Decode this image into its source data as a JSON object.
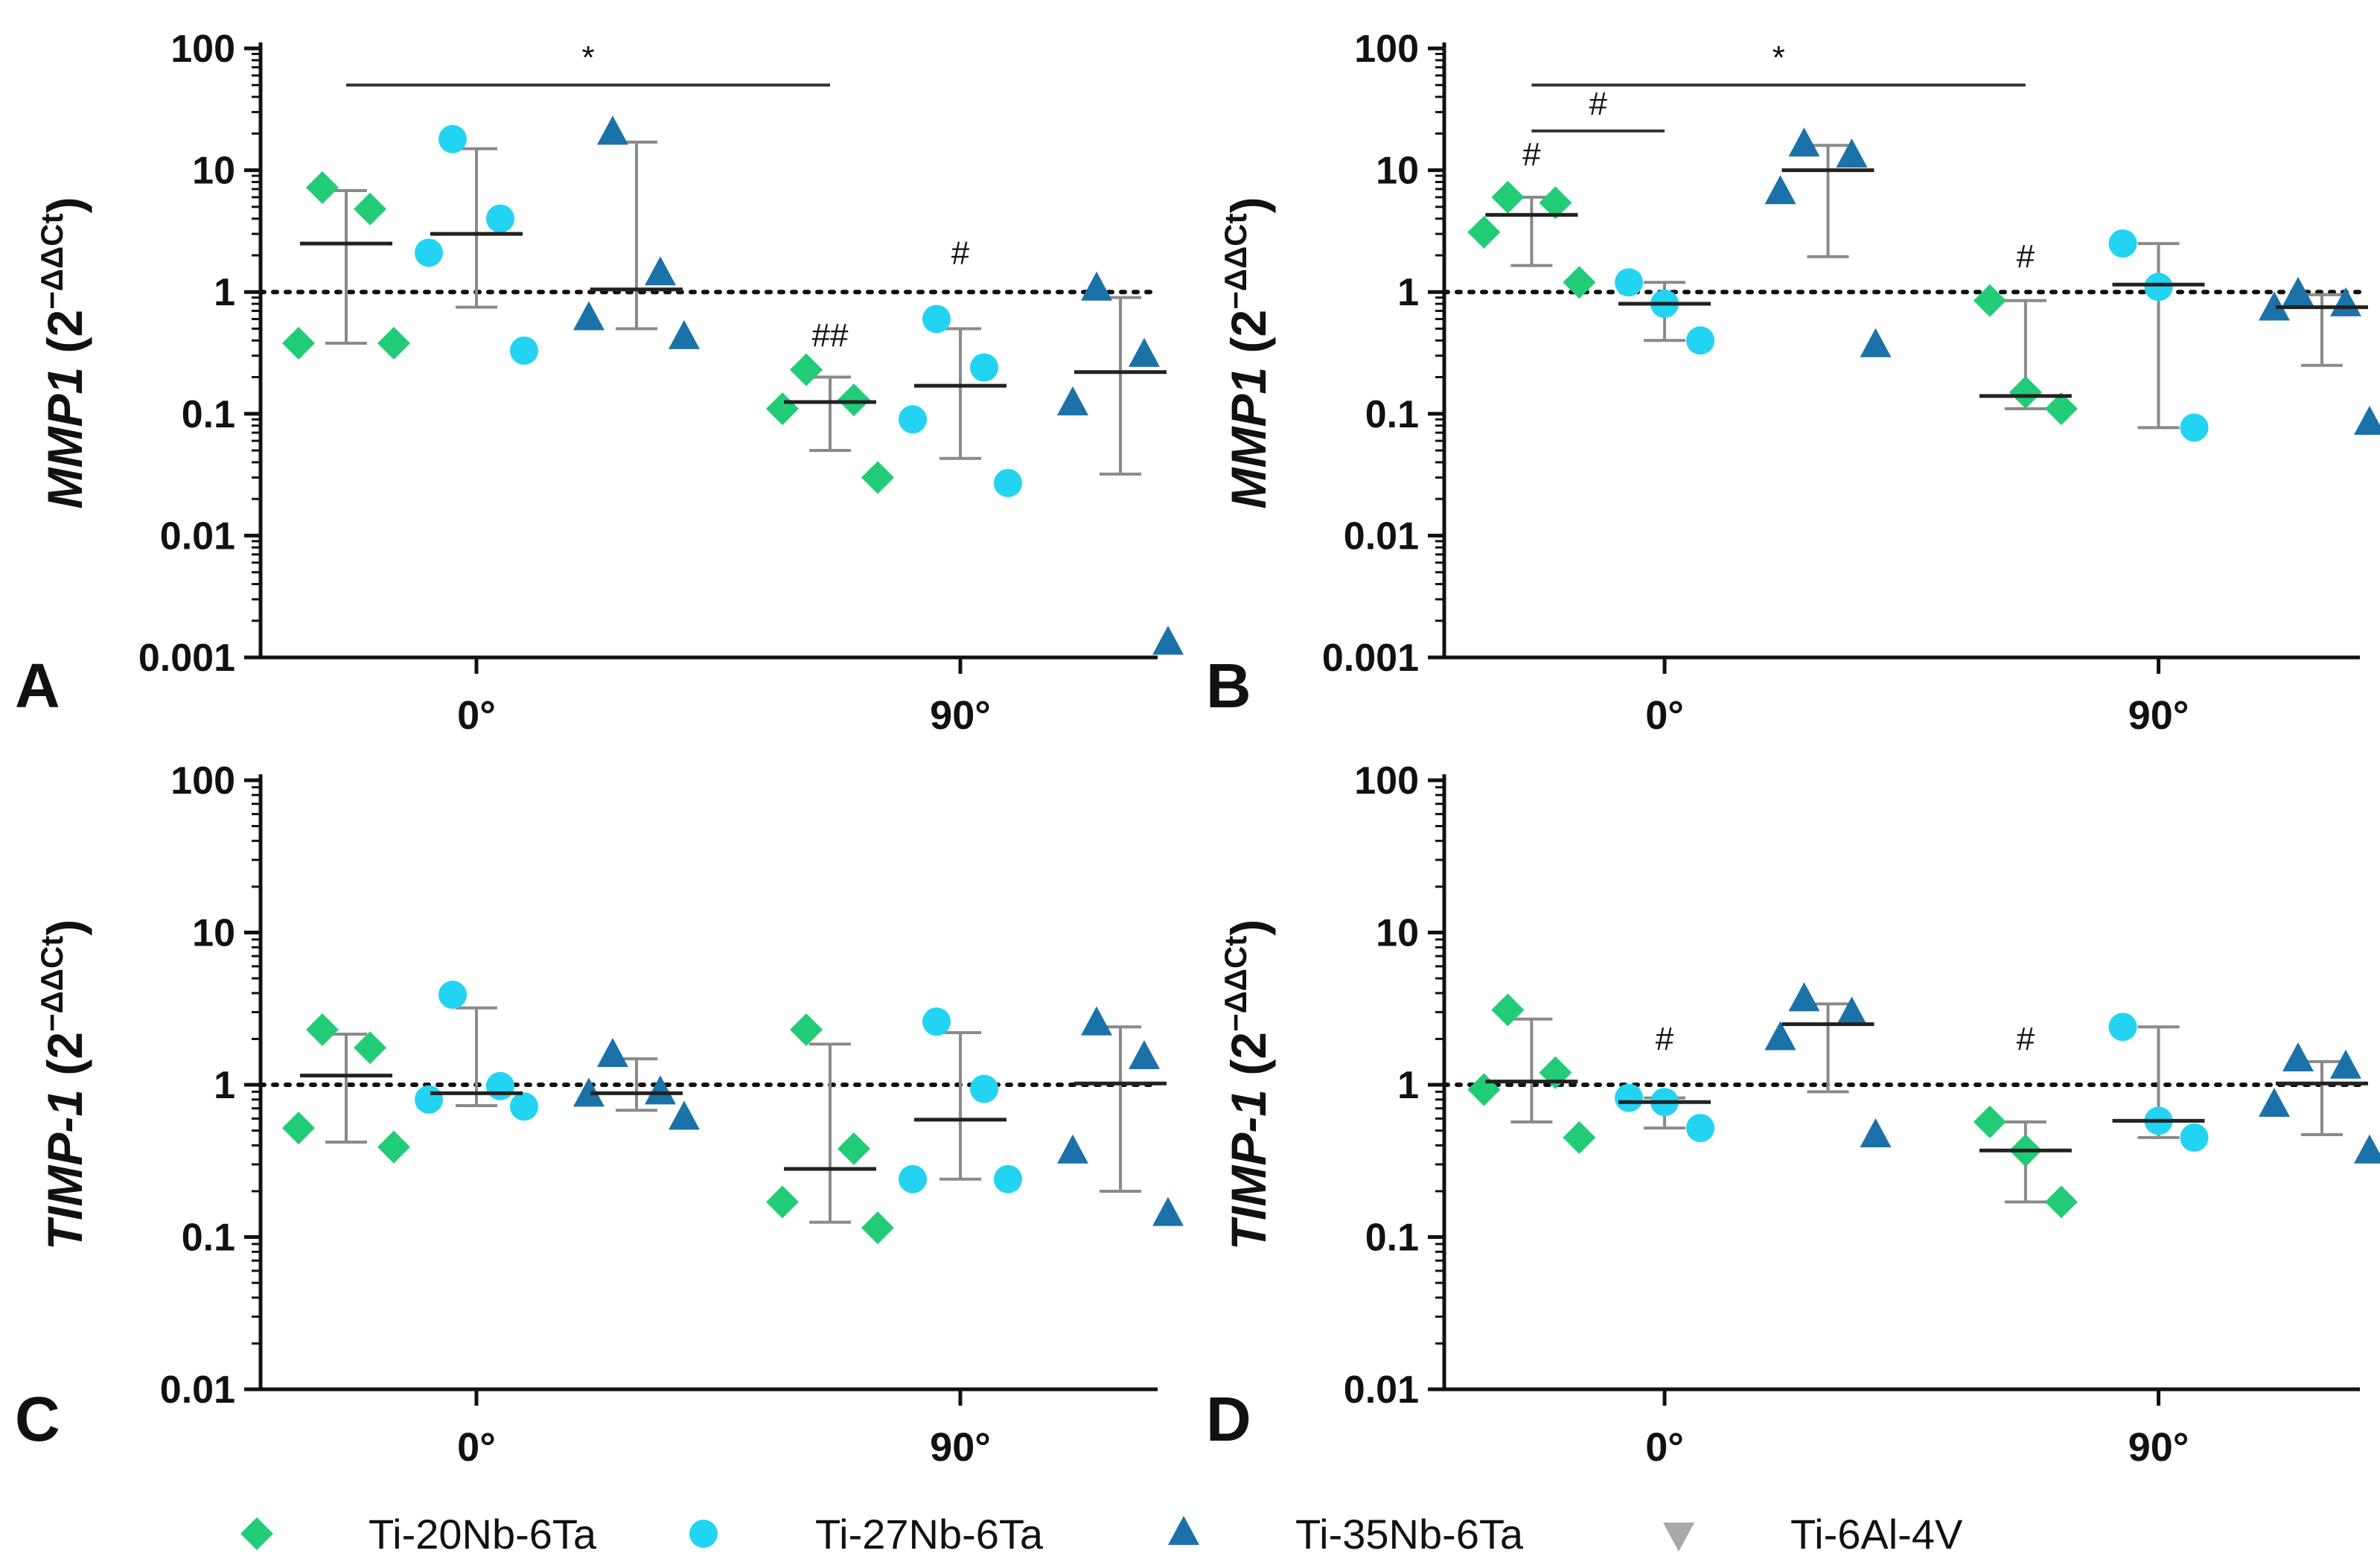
{
  "colors": {
    "Ti-20Nb-6Ta": "#22cc77",
    "Ti-27Nb-6Ta": "#22d4f2",
    "Ti-35Nb-6Ta": "#1a72a8",
    "Ti-6Al-4V": "#a8a8ad",
    "axis": "#111111",
    "errorbar": "#8a8a8a"
  },
  "legend": [
    {
      "label": "Ti-20Nb-6Ta",
      "marker": "diamond-icon"
    },
    {
      "label": "Ti-27Nb-6Ta",
      "marker": "circle-icon"
    },
    {
      "label": "Ti-35Nb-6Ta",
      "marker": "triangle-up-icon"
    },
    {
      "label": "Ti-6Al-4V",
      "marker": "triangle-down-icon"
    }
  ],
  "chart_data": [
    {
      "panel": "A",
      "type": "scatter",
      "ylabel_gene": "MMP1",
      "ylabel_unit": "(2",
      "ylabel_sup": "−ΔΔCt",
      "ylabel_close": ")",
      "yscale": "log",
      "ylim": [
        0.001,
        100
      ],
      "yticks": [
        "0.001",
        "0.01",
        "0.1",
        "1",
        "10",
        "100"
      ],
      "categories": [
        "0°",
        "90°"
      ],
      "reference_line": 1,
      "series": [
        {
          "name": "Ti-20Nb-6Ta",
          "groups": [
            {
              "category": "0°",
              "points": [
                7.2,
                4.8,
                0.38,
                0.38
              ],
              "median": 2.5,
              "err": [
                0.38,
                6.8
              ]
            },
            {
              "category": "90°",
              "points": [
                0.23,
                0.13,
                0.11,
                0.03
              ],
              "median": 0.125,
              "err": [
                0.05,
                0.2
              ]
            }
          ]
        },
        {
          "name": "Ti-27Nb-6Ta",
          "groups": [
            {
              "category": "0°",
              "points": [
                18,
                4,
                2.1,
                0.33
              ],
              "median": 3.0,
              "err": [
                0.75,
                15
              ]
            },
            {
              "category": "90°",
              "points": [
                0.6,
                0.24,
                0.09,
                0.027
              ],
              "median": 0.17,
              "err": [
                0.043,
                0.5
              ]
            }
          ]
        },
        {
          "name": "Ti-35Nb-6Ta",
          "groups": [
            {
              "category": "0°",
              "points": [
                20,
                1.4,
                0.6,
                0.42
              ],
              "median": 1.05,
              "err": [
                0.5,
                17
              ]
            },
            {
              "category": "90°",
              "points": [
                1.05,
                0.3,
                0.12,
                0.0013
              ],
              "median": 0.22,
              "err": [
                0.032,
                0.9
              ]
            }
          ]
        }
      ],
      "annotations": [
        {
          "type": "bracket",
          "text": "*",
          "from": [
            0,
            "Ti-20Nb-6Ta"
          ],
          "to": [
            1,
            "Ti-20Nb-6Ta"
          ],
          "y": 50
        },
        {
          "type": "label",
          "text": "##",
          "category": "90°",
          "series": "Ti-20Nb-6Ta",
          "y": 0.36
        },
        {
          "type": "label",
          "text": "#",
          "category": "90°",
          "series": "Ti-27Nb-6Ta",
          "y": 1.7
        }
      ]
    },
    {
      "panel": "B",
      "type": "scatter",
      "ylabel_gene": "MMP1",
      "ylabel_unit": "(2",
      "ylabel_sup": "−ΔΔCt",
      "ylabel_close": ")",
      "yscale": "log",
      "ylim": [
        0.001,
        100
      ],
      "yticks": [
        "0.001",
        "0.01",
        "0.1",
        "1",
        "10",
        "100"
      ],
      "categories": [
        "0°",
        "90°"
      ],
      "reference_line": 1,
      "series": [
        {
          "name": "Ti-20Nb-6Ta",
          "groups": [
            {
              "category": "0°",
              "points": [
                6,
                5.4,
                3.1,
                1.2
              ],
              "median": 4.3,
              "err": [
                1.65,
                6
              ]
            },
            {
              "category": "90°",
              "points": [
                0.85,
                0.15,
                0.11
              ],
              "median": 0.14,
              "err": [
                0.11,
                0.85
              ]
            }
          ]
        },
        {
          "name": "Ti-27Nb-6Ta",
          "groups": [
            {
              "category": "0°",
              "points": [
                1.2,
                0.8,
                0.4
              ],
              "median": 0.8,
              "err": [
                0.4,
                1.2
              ]
            },
            {
              "category": "90°",
              "points": [
                2.5,
                1.1,
                0.077
              ],
              "median": 1.15,
              "err": [
                0.077,
                2.5
              ]
            }
          ]
        },
        {
          "name": "Ti-35Nb-6Ta",
          "groups": [
            {
              "category": "0°",
              "points": [
                16,
                13,
                6.5,
                0.36
              ],
              "median": 10,
              "err": [
                1.95,
                16
              ]
            },
            {
              "category": "90°",
              "points": [
                0.95,
                0.78,
                0.72,
                0.083
              ],
              "median": 0.75,
              "err": [
                0.25,
                0.95
              ]
            }
          ]
        }
      ],
      "annotations": [
        {
          "type": "bracket",
          "text": "*",
          "from": [
            0,
            "Ti-20Nb-6Ta"
          ],
          "to": [
            1,
            "Ti-20Nb-6Ta"
          ],
          "y": 50
        },
        {
          "type": "bracket",
          "text": "#",
          "from": [
            0,
            "Ti-20Nb-6Ta"
          ],
          "to": [
            0,
            "Ti-27Nb-6Ta"
          ],
          "y": 21
        },
        {
          "type": "label",
          "text": "#",
          "category": "0°",
          "series": "Ti-20Nb-6Ta",
          "y": 11
        },
        {
          "type": "label",
          "text": "#",
          "category": "90°",
          "series": "Ti-20Nb-6Ta",
          "y": 1.6
        }
      ]
    },
    {
      "panel": "C",
      "type": "scatter",
      "ylabel_gene": "TIMP-1",
      "ylabel_unit": "(2",
      "ylabel_sup": "−ΔΔCt",
      "ylabel_close": ")",
      "yscale": "log",
      "ylim": [
        0.01,
        100
      ],
      "yticks": [
        "0.01",
        "0.1",
        "1",
        "10",
        "100"
      ],
      "categories": [
        "0°",
        "90°"
      ],
      "reference_line": 1,
      "series": [
        {
          "name": "Ti-20Nb-6Ta",
          "groups": [
            {
              "category": "0°",
              "points": [
                2.3,
                1.75,
                0.52,
                0.39
              ],
              "median": 1.15,
              "err": [
                0.42,
                2.15
              ]
            },
            {
              "category": "90°",
              "points": [
                2.3,
                0.38,
                0.17,
                0.115
              ],
              "median": 0.28,
              "err": [
                0.125,
                1.85
              ]
            }
          ]
        },
        {
          "name": "Ti-27Nb-6Ta",
          "groups": [
            {
              "category": "0°",
              "points": [
                3.9,
                0.98,
                0.8,
                0.72
              ],
              "median": 0.88,
              "err": [
                0.73,
                3.2
              ]
            },
            {
              "category": "90°",
              "points": [
                2.6,
                0.94,
                0.24,
                0.24
              ],
              "median": 0.59,
              "err": [
                0.24,
                2.2
              ]
            }
          ]
        },
        {
          "name": "Ti-35Nb-6Ta",
          "groups": [
            {
              "category": "0°",
              "points": [
                1.55,
                0.88,
                0.85,
                0.6
              ],
              "median": 0.88,
              "err": [
                0.68,
                1.48
              ]
            },
            {
              "category": "90°",
              "points": [
                2.5,
                1.5,
                0.36,
                0.14
              ],
              "median": 1.02,
              "err": [
                0.2,
                2.4
              ]
            }
          ]
        }
      ],
      "annotations": []
    },
    {
      "panel": "D",
      "type": "scatter",
      "ylabel_gene": "TIMP-1",
      "ylabel_unit": "(2",
      "ylabel_sup": "−ΔΔCt",
      "ylabel_close": ")",
      "yscale": "log",
      "ylim": [
        0.01,
        100
      ],
      "yticks": [
        "0.01",
        "0.1",
        "1",
        "10",
        "100"
      ],
      "categories": [
        "0°",
        "90°"
      ],
      "reference_line": 1,
      "series": [
        {
          "name": "Ti-20Nb-6Ta",
          "groups": [
            {
              "category": "0°",
              "points": [
                3.1,
                1.2,
                0.93,
                0.45
              ],
              "median": 1.05,
              "err": [
                0.57,
                2.7
              ]
            },
            {
              "category": "90°",
              "points": [
                0.57,
                0.37,
                0.17
              ],
              "median": 0.37,
              "err": [
                0.17,
                0.57
              ]
            }
          ]
        },
        {
          "name": "Ti-27Nb-6Ta",
          "groups": [
            {
              "category": "0°",
              "points": [
                0.82,
                0.77,
                0.52
              ],
              "median": 0.77,
              "err": [
                0.52,
                0.82
              ]
            },
            {
              "category": "90°",
              "points": [
                2.4,
                0.58,
                0.45
              ],
              "median": 0.58,
              "err": [
                0.45,
                2.4
              ]
            }
          ]
        },
        {
          "name": "Ti-35Nb-6Ta",
          "groups": [
            {
              "category": "0°",
              "points": [
                3.6,
                2.9,
                2.0,
                0.46
              ],
              "median": 2.5,
              "err": [
                0.9,
                3.4
              ]
            },
            {
              "category": "90°",
              "points": [
                1.45,
                1.3,
                0.73,
                0.36
              ],
              "median": 1.02,
              "err": [
                0.47,
                1.42
              ]
            }
          ]
        }
      ],
      "annotations": [
        {
          "type": "label",
          "text": "#",
          "category": "0°",
          "series": "Ti-27Nb-6Ta",
          "y": 1.7
        },
        {
          "type": "label",
          "text": "#",
          "category": "90°",
          "series": "Ti-20Nb-6Ta",
          "y": 1.7
        }
      ]
    }
  ]
}
